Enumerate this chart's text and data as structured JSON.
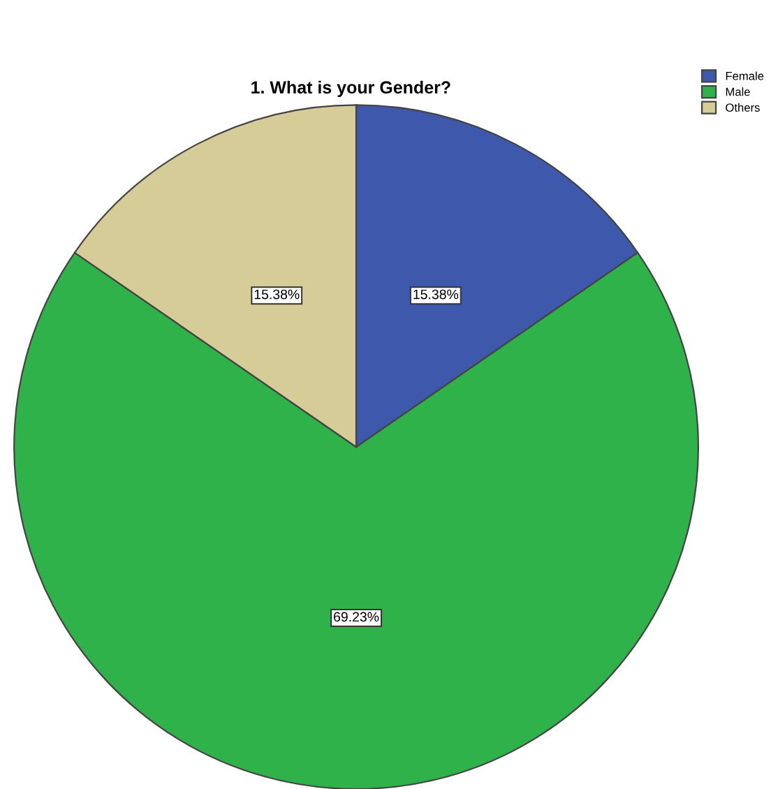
{
  "chart_data": {
    "type": "pie",
    "title": "1. What is your Gender?",
    "categories": [
      "Female",
      "Male",
      "Others"
    ],
    "values": [
      15.38,
      69.23,
      15.38
    ],
    "colors": [
      "#3e58ac",
      "#2fb24a",
      "#d6cc98"
    ],
    "value_labels": [
      "15.38%",
      "69.23%",
      "15.38%"
    ],
    "legend": "top right"
  }
}
